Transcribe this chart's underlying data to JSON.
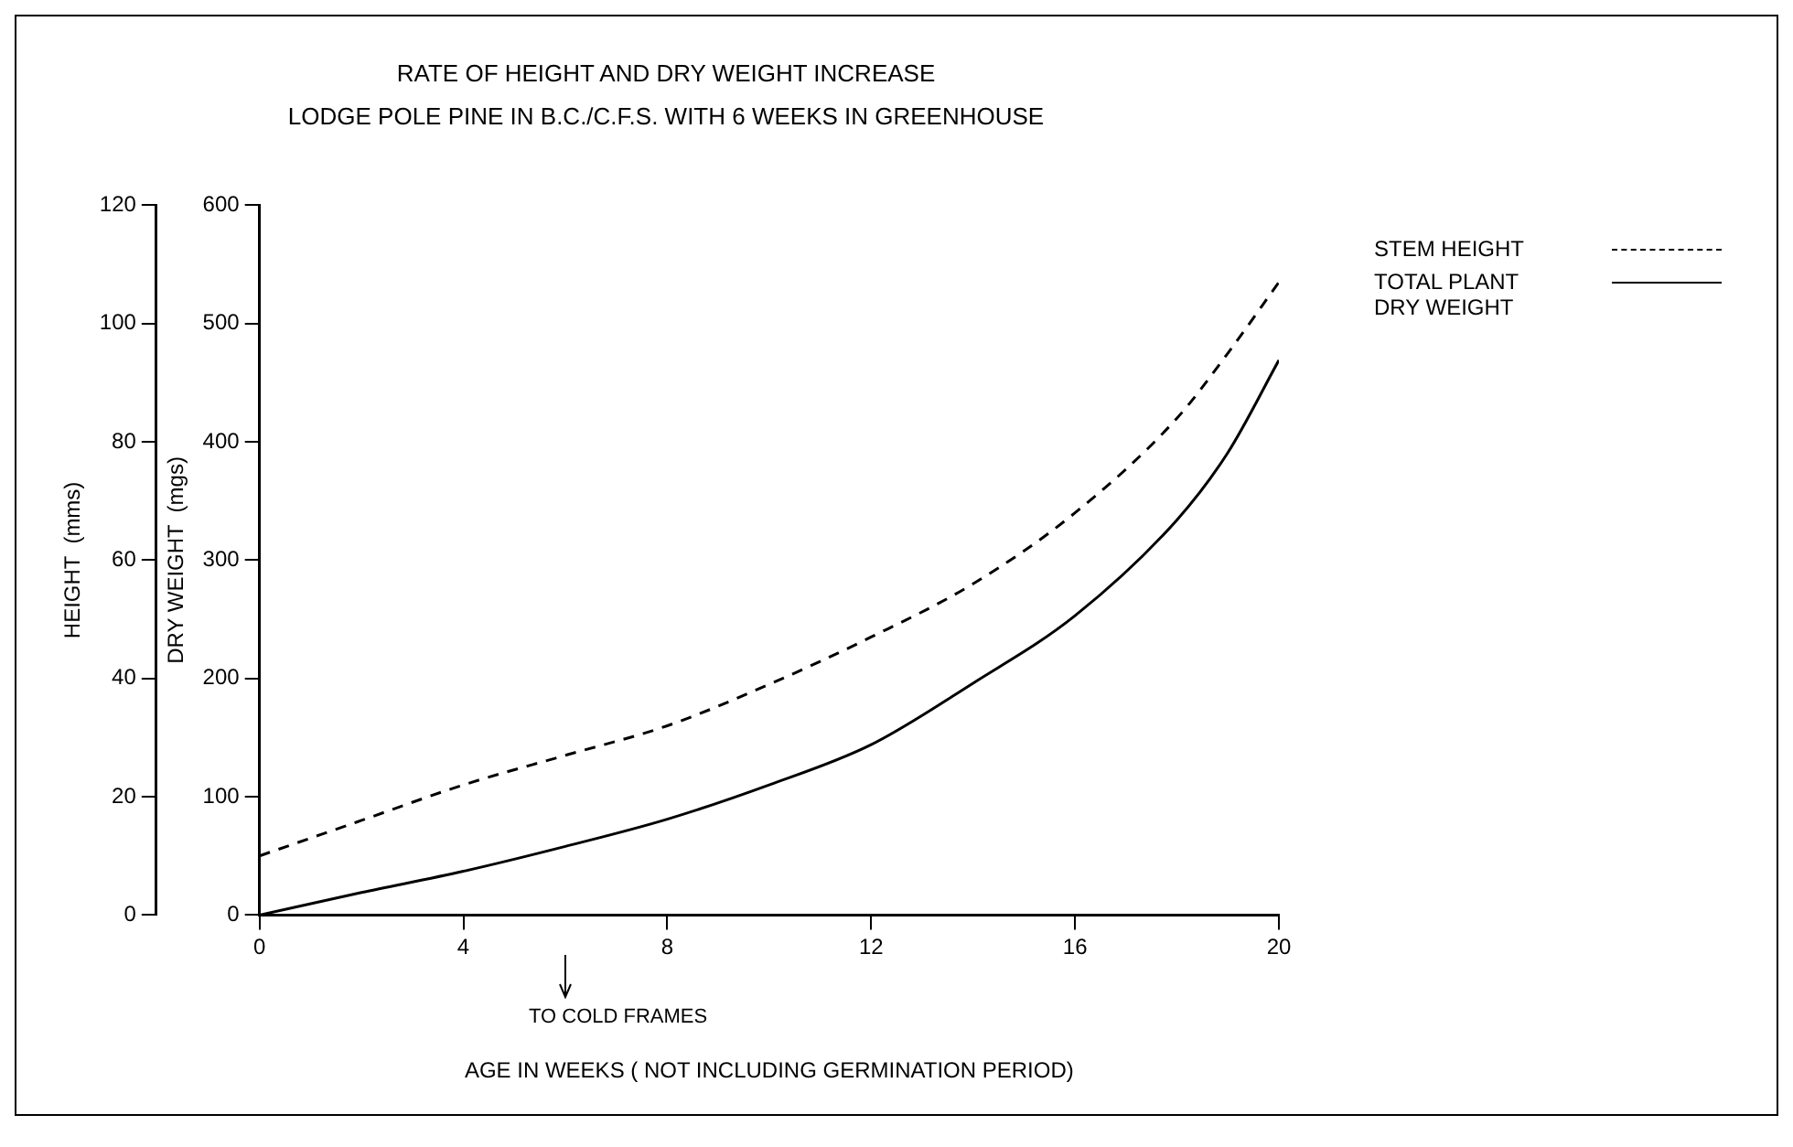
{
  "chart_data": {
    "type": "line",
    "title": "RATE OF HEIGHT AND DRY WEIGHT INCREASE",
    "subtitle": "LODGE POLE PINE IN B.C./C.F.S. WITH 6 WEEKS IN GREENHOUSE",
    "xlabel": "AGE IN WEEKS ( NOT INCLUDING GERMINATION PERIOD)",
    "ylabel": "DRY WEIGHT  (mgs)",
    "y2label": "HEIGHT  (mms)",
    "x": [
      0,
      2,
      4,
      6,
      8,
      10,
      12,
      14,
      16,
      18,
      19,
      20
    ],
    "series": [
      {
        "name": "STEM HEIGHT",
        "color": "#000000",
        "axis": "y2",
        "line_style": "dashed",
        "values": [
          10,
          16,
          22,
          27,
          32,
          39,
          47,
          56,
          68,
          84,
          95,
          107
        ]
      },
      {
        "name": "TOTAL PLANT\nDRY WEIGHT",
        "color": "#000000",
        "line_style": "solid",
        "values": [
          0,
          19,
          37,
          58,
          81,
          110,
          144,
          196,
          253,
          334,
          391,
          469
        ]
      }
    ],
    "xlim": [
      0,
      20
    ],
    "xticks": [
      0,
      4,
      8,
      12,
      16,
      20
    ],
    "ylim": [
      0,
      600
    ],
    "yticks": [
      0,
      100,
      200,
      300,
      400,
      500,
      600
    ],
    "y2lim": [
      0,
      120
    ],
    "y2ticks": [
      0,
      20,
      40,
      60,
      80,
      100,
      120
    ],
    "annotations": [
      "TO COLD FRAMES"
    ],
    "grid": false,
    "legend": "top right",
    "marker": "none"
  }
}
